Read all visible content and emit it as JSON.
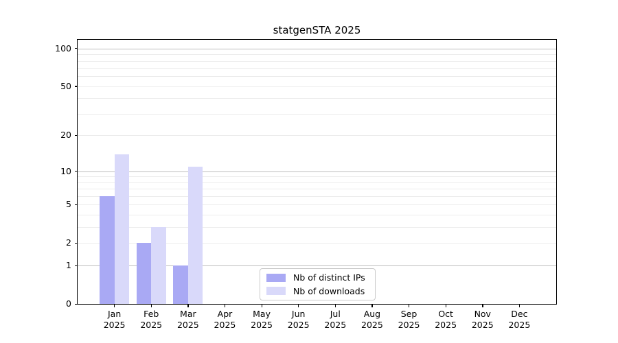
{
  "chart_data": {
    "type": "bar",
    "title": "statgenSTA 2025",
    "categories": [
      "Jan",
      "Feb",
      "Mar",
      "Apr",
      "May",
      "Jun",
      "Jul",
      "Aug",
      "Sep",
      "Oct",
      "Nov",
      "Dec"
    ],
    "year_label": "2025",
    "series": [
      {
        "name": "Nb of distinct IPs",
        "color": "#a9a9f4",
        "values": [
          6,
          2,
          1,
          0,
          0,
          0,
          0,
          0,
          0,
          0,
          0,
          0
        ]
      },
      {
        "name": "Nb of downloads",
        "color": "#d9d9fa",
        "values": [
          14,
          3,
          11,
          0,
          0,
          0,
          0,
          0,
          0,
          0,
          0,
          0
        ]
      }
    ],
    "yscale": "log1p",
    "ylim": [
      0,
      100
    ],
    "ytick_labels": [
      0,
      1,
      2,
      5,
      10,
      20,
      50,
      100
    ],
    "major_gridlines": [
      1,
      10,
      100
    ],
    "minor_gridlines": [
      2,
      3,
      4,
      5,
      6,
      7,
      8,
      9,
      20,
      30,
      40,
      50,
      60,
      70,
      80,
      90
    ],
    "grid": "horizontal",
    "legend_position": "lower center inside",
    "colors": {
      "axis": "#000000",
      "major_grid": "#bdbdbd",
      "minor_grid": "#ececec",
      "background": "#ffffff"
    }
  }
}
